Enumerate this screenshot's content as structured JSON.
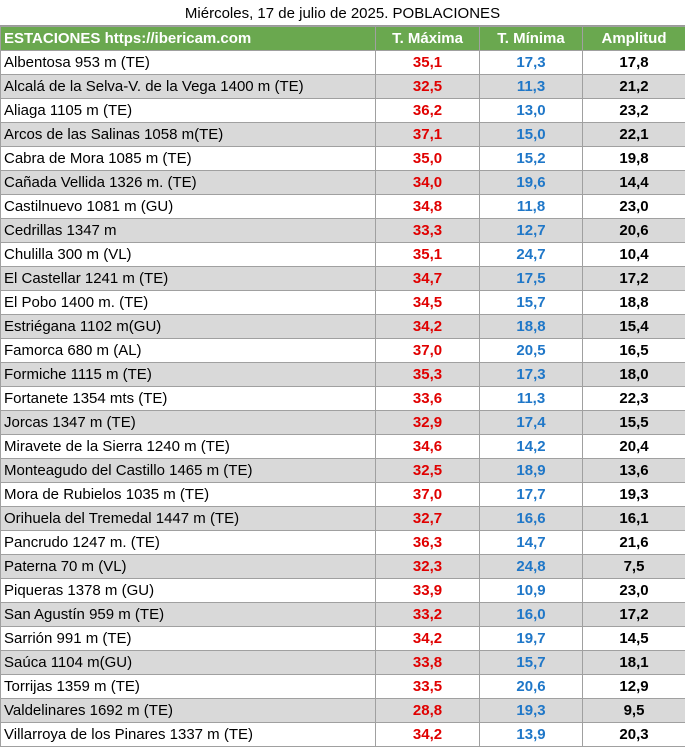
{
  "title": "Miércoles, 17 de julio de 2025. POBLACIONES",
  "headers": {
    "station": "ESTACIONES https://ibericam.com",
    "tmax": "T. Máxima",
    "tmin": "T. Mínima",
    "amplitude": "Amplitud"
  },
  "colors": {
    "header_bg": "#6aa84f",
    "max": "#e00000",
    "min": "#1f77c8",
    "row_shade": "#d9d9d9"
  },
  "rows": [
    {
      "station": "Albentosa 953 m (TE)",
      "max": "35,1",
      "min": "17,3",
      "amp": "17,8"
    },
    {
      "station": "Alcalá de la Selva-V. de la Vega 1400 m (TE)",
      "max": "32,5",
      "min": "11,3",
      "amp": "21,2"
    },
    {
      "station": "Aliaga 1105 m (TE)",
      "max": "36,2",
      "min": "13,0",
      "amp": "23,2"
    },
    {
      "station": "Arcos de las Salinas 1058 m(TE)",
      "max": "37,1",
      "min": "15,0",
      "amp": "22,1"
    },
    {
      "station": "Cabra de Mora 1085 m (TE)",
      "max": "35,0",
      "min": "15,2",
      "amp": "19,8"
    },
    {
      "station": "Cañada Vellida 1326 m. (TE)",
      "max": "34,0",
      "min": "19,6",
      "amp": "14,4"
    },
    {
      "station": "Castilnuevo 1081 m (GU)",
      "max": "34,8",
      "min": "11,8",
      "amp": "23,0"
    },
    {
      "station": "Cedrillas 1347 m",
      "max": "33,3",
      "min": "12,7",
      "amp": "20,6"
    },
    {
      "station": "Chulilla 300 m (VL)",
      "max": "35,1",
      "min": "24,7",
      "amp": "10,4"
    },
    {
      "station": "El Castellar 1241 m (TE)",
      "max": "34,7",
      "min": "17,5",
      "amp": "17,2"
    },
    {
      "station": "El Pobo 1400 m. (TE)",
      "max": "34,5",
      "min": "15,7",
      "amp": "18,8"
    },
    {
      "station": "Estriégana 1102 m(GU)",
      "max": "34,2",
      "min": "18,8",
      "amp": "15,4"
    },
    {
      "station": "Famorca 680 m (AL)",
      "max": "37,0",
      "min": "20,5",
      "amp": "16,5"
    },
    {
      "station": "Formiche 1115 m (TE)",
      "max": "35,3",
      "min": "17,3",
      "amp": "18,0"
    },
    {
      "station": "Fortanete 1354 mts (TE)",
      "max": "33,6",
      "min": "11,3",
      "amp": "22,3"
    },
    {
      "station": "Jorcas 1347 m (TE)",
      "max": "32,9",
      "min": "17,4",
      "amp": "15,5"
    },
    {
      "station": "Miravete de la Sierra 1240 m (TE)",
      "max": "34,6",
      "min": "14,2",
      "amp": "20,4"
    },
    {
      "station": "Monteagudo del Castillo 1465 m (TE)",
      "max": "32,5",
      "min": "18,9",
      "amp": "13,6"
    },
    {
      "station": "Mora de Rubielos 1035 m (TE)",
      "max": "37,0",
      "min": "17,7",
      "amp": "19,3"
    },
    {
      "station": "Orihuela del Tremedal 1447 m (TE)",
      "max": "32,7",
      "min": "16,6",
      "amp": "16,1"
    },
    {
      "station": "Pancrudo 1247 m. (TE)",
      "max": "36,3",
      "min": "14,7",
      "amp": "21,6"
    },
    {
      "station": "Paterna 70 m (VL)",
      "max": "32,3",
      "min": "24,8",
      "amp": "7,5"
    },
    {
      "station": "Piqueras 1378 m (GU)",
      "max": "33,9",
      "min": "10,9",
      "amp": "23,0"
    },
    {
      "station": "San Agustín 959 m (TE)",
      "max": "33,2",
      "min": "16,0",
      "amp": "17,2"
    },
    {
      "station": "Sarrión 991 m (TE)",
      "max": "34,2",
      "min": "19,7",
      "amp": "14,5"
    },
    {
      "station": "Saúca 1104 m(GU)",
      "max": "33,8",
      "min": "15,7",
      "amp": "18,1"
    },
    {
      "station": "Torrijas 1359 m (TE)",
      "max": "33,5",
      "min": "20,6",
      "amp": "12,9"
    },
    {
      "station": "Valdelinares 1692 m (TE)",
      "max": "28,8",
      "min": "19,3",
      "amp": "9,5"
    },
    {
      "station": "Villarroya de los Pinares 1337 m (TE)",
      "max": "34,2",
      "min": "13,9",
      "amp": "20,3"
    }
  ]
}
